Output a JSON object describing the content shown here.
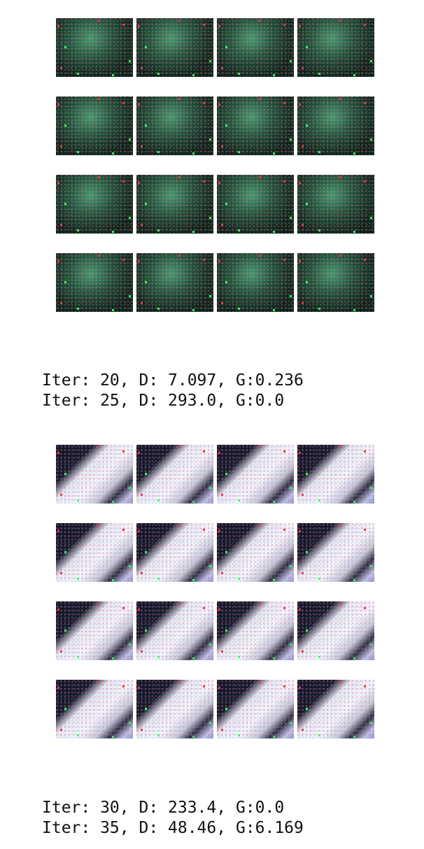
{
  "grids": [
    {
      "rows": 4,
      "cols": 4,
      "style": "green"
    },
    {
      "rows": 4,
      "cols": 4,
      "style": "bright"
    }
  ],
  "logs": [
    {
      "lines": [
        "Iter: 20, D: 7.097, G:0.236",
        "Iter: 25, D: 293.0, G:0.0"
      ]
    },
    {
      "lines": [
        "Iter: 30, D: 233.4, G:0.0",
        "Iter: 35, D: 48.46, G:6.169"
      ]
    }
  ],
  "colors": {
    "text": "#111111",
    "background": "#ffffff",
    "pixel_red": "#ff3344",
    "pixel_green": "#33ff66"
  }
}
